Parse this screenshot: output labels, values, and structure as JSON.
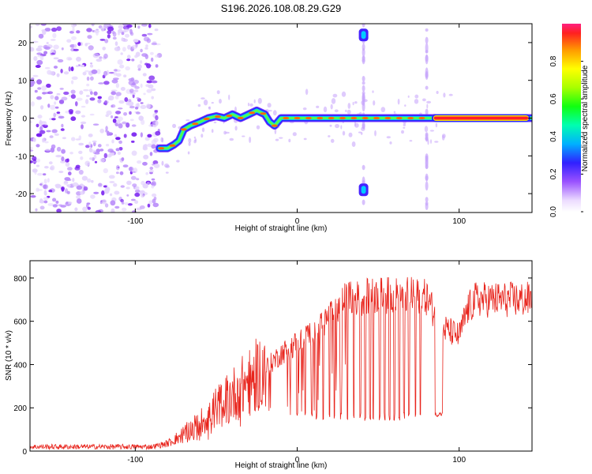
{
  "figure_title": "S196.2026.108.08.29.G29",
  "chart_data": [
    {
      "type": "heatmap",
      "id": "spectrogram",
      "xlabel": "Height of straight line (km)",
      "ylabel": "Frequency (Hz)",
      "xlim": [
        -165,
        145
      ],
      "ylim": [
        -25,
        25
      ],
      "xticks": [
        -100,
        0,
        100
      ],
      "yticks": [
        -20,
        -10,
        0,
        10,
        20
      ],
      "grid": false,
      "noise_region_x": [
        -165,
        -85
      ],
      "ridge": {
        "x": [
          -85,
          -80,
          -76,
          -73,
          -70,
          -66,
          -60,
          -55,
          -50,
          -45,
          -40,
          -35,
          -30,
          -25,
          -20,
          -17,
          -14,
          -10,
          0,
          10,
          20,
          30,
          40,
          45,
          55,
          65,
          75,
          80,
          90,
          100,
          145
        ],
        "y": [
          -8,
          -8,
          -7,
          -6,
          -3,
          -2,
          -1,
          0,
          0.5,
          0,
          1,
          0,
          1,
          2,
          1,
          -1,
          -2,
          0,
          0,
          0,
          0,
          0,
          0,
          0,
          0,
          0,
          0,
          0,
          0,
          0,
          0
        ]
      },
      "vertical_streaks_x": [
        41,
        80
      ],
      "colorbar": {
        "label": "Normalized spectral amplitude",
        "min": 0,
        "max": 1,
        "ticks": [
          0.0,
          0.2,
          0.4,
          0.6,
          0.8
        ],
        "tick_labels": [
          "0.0",
          "0.2",
          "0.4",
          "0.6",
          "0.8"
        ]
      }
    },
    {
      "type": "line",
      "id": "snr",
      "xlabel": "Height of straight line (km)",
      "ylabel": "SNR (10 * v/v)",
      "xlim": [
        -165,
        145
      ],
      "ylim": [
        0,
        880
      ],
      "xticks": [
        -100,
        0,
        100
      ],
      "yticks": [
        0,
        200,
        400,
        600,
        800
      ],
      "grid": false,
      "series": [
        {
          "name": "SNR",
          "color": "#e8241c",
          "envelope_x": [
            -165,
            -90,
            -80,
            -70,
            -60,
            -50,
            -40,
            -30,
            -20,
            -10,
            0,
            10,
            20,
            25,
            30,
            40,
            50,
            60,
            70,
            80,
            84,
            88,
            90,
            95,
            100,
            105,
            110,
            120,
            130,
            145
          ],
          "envelope_y": [
            20,
            20,
            35,
            80,
            130,
            200,
            260,
            320,
            380,
            450,
            500,
            560,
            620,
            660,
            700,
            710,
            720,
            720,
            720,
            710,
            650,
            580,
            570,
            550,
            530,
            650,
            700,
            700,
            700,
            700
          ],
          "dropouts_x": [
            0,
            5,
            9,
            12,
            16,
            20,
            23,
            27,
            31,
            35,
            39,
            42,
            45,
            47,
            51,
            54,
            57,
            60,
            63,
            66,
            69,
            73,
            76
          ],
          "dropout_floor": 140,
          "notch_x": [
            85,
            90
          ],
          "notch_y": 170
        }
      ]
    }
  ]
}
